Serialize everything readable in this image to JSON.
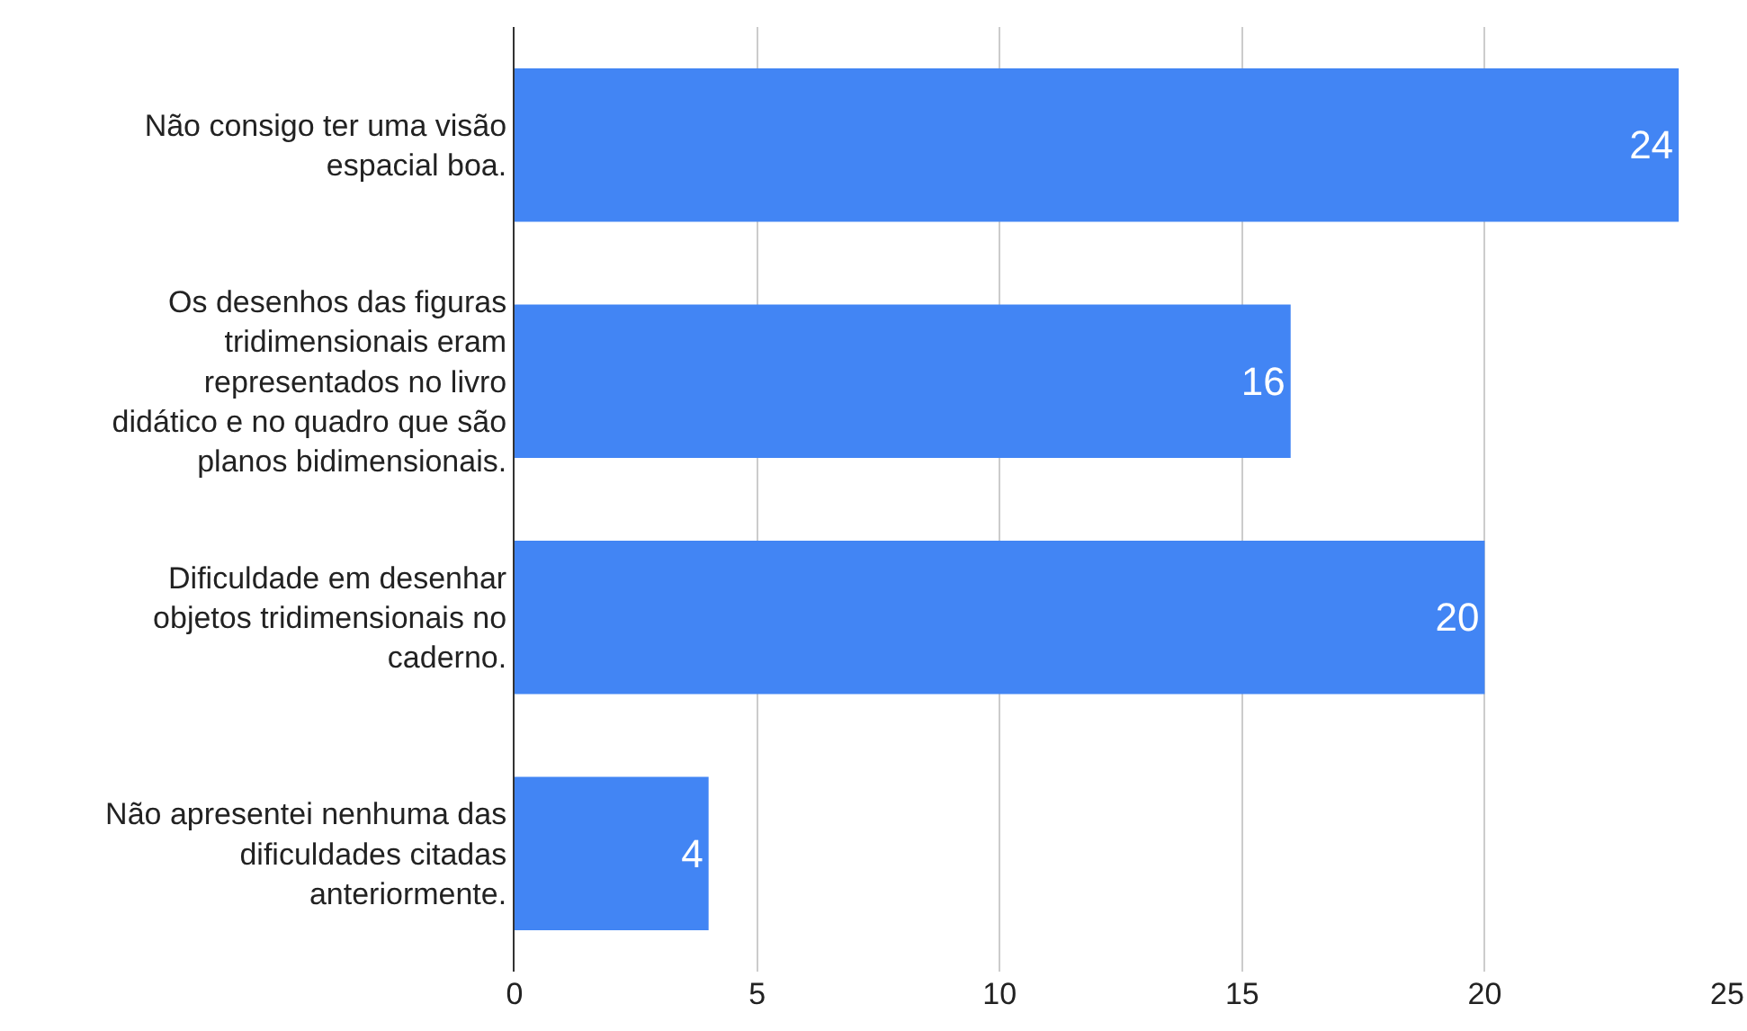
{
  "chart_data": {
    "type": "bar",
    "orientation": "horizontal",
    "categories": [
      "Não consigo ter uma visão espacial boa.",
      "Os desenhos das figuras tridimensionais eram representados no livro didático e no quadro que são planos bidimensionais.",
      "Dificuldade em desenhar objetos tridimensionais no caderno.",
      "Não apresentei nenhuma das dificuldades citadas anteriormente."
    ],
    "values": [
      24,
      16,
      20,
      4
    ],
    "color": "#4285f4",
    "xlim": [
      0,
      25
    ],
    "xticks": [
      0,
      5,
      10,
      15,
      20,
      25
    ],
    "grid": "x",
    "data_labels": true,
    "legend": false
  }
}
